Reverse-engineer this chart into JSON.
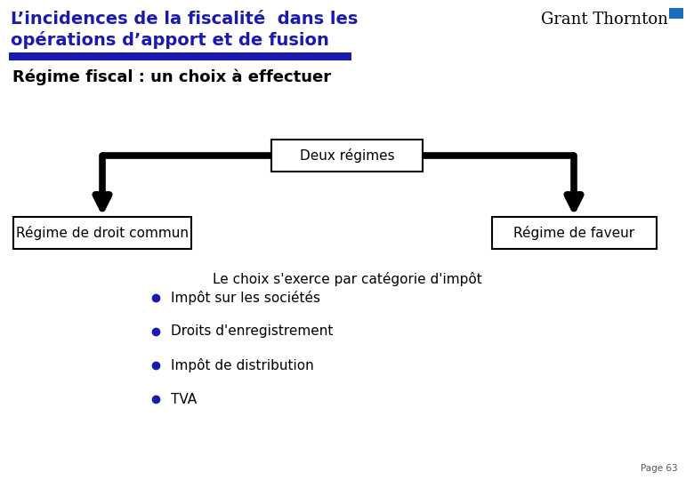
{
  "title_line1": "L’incidences de la fiscalité  dans les",
  "title_line2": "opérations d’apport et de fusion",
  "subtitle": "Régime fiscal : un choix à effectuer",
  "center_box": "Deux régimes",
  "left_box": "Régime de droit commun",
  "right_box": "Régime de faveur",
  "middle_text": "Le choix s'exerce par catégorie d'impôt",
  "bullets": [
    "Impôt sur les sociétés",
    "Droits d'enregistrement",
    "Impôt de distribution",
    "TVA"
  ],
  "page_label": "Page 63",
  "title_color": "#1a1aaf",
  "subtitle_color": "#000000",
  "box_border_color": "#000000",
  "arrow_color": "#000000",
  "bar_color": "#1a1aaf",
  "background_color": "#ffffff",
  "grant_thornton_color": "#000000",
  "bullet_color": "#1a1aaf"
}
